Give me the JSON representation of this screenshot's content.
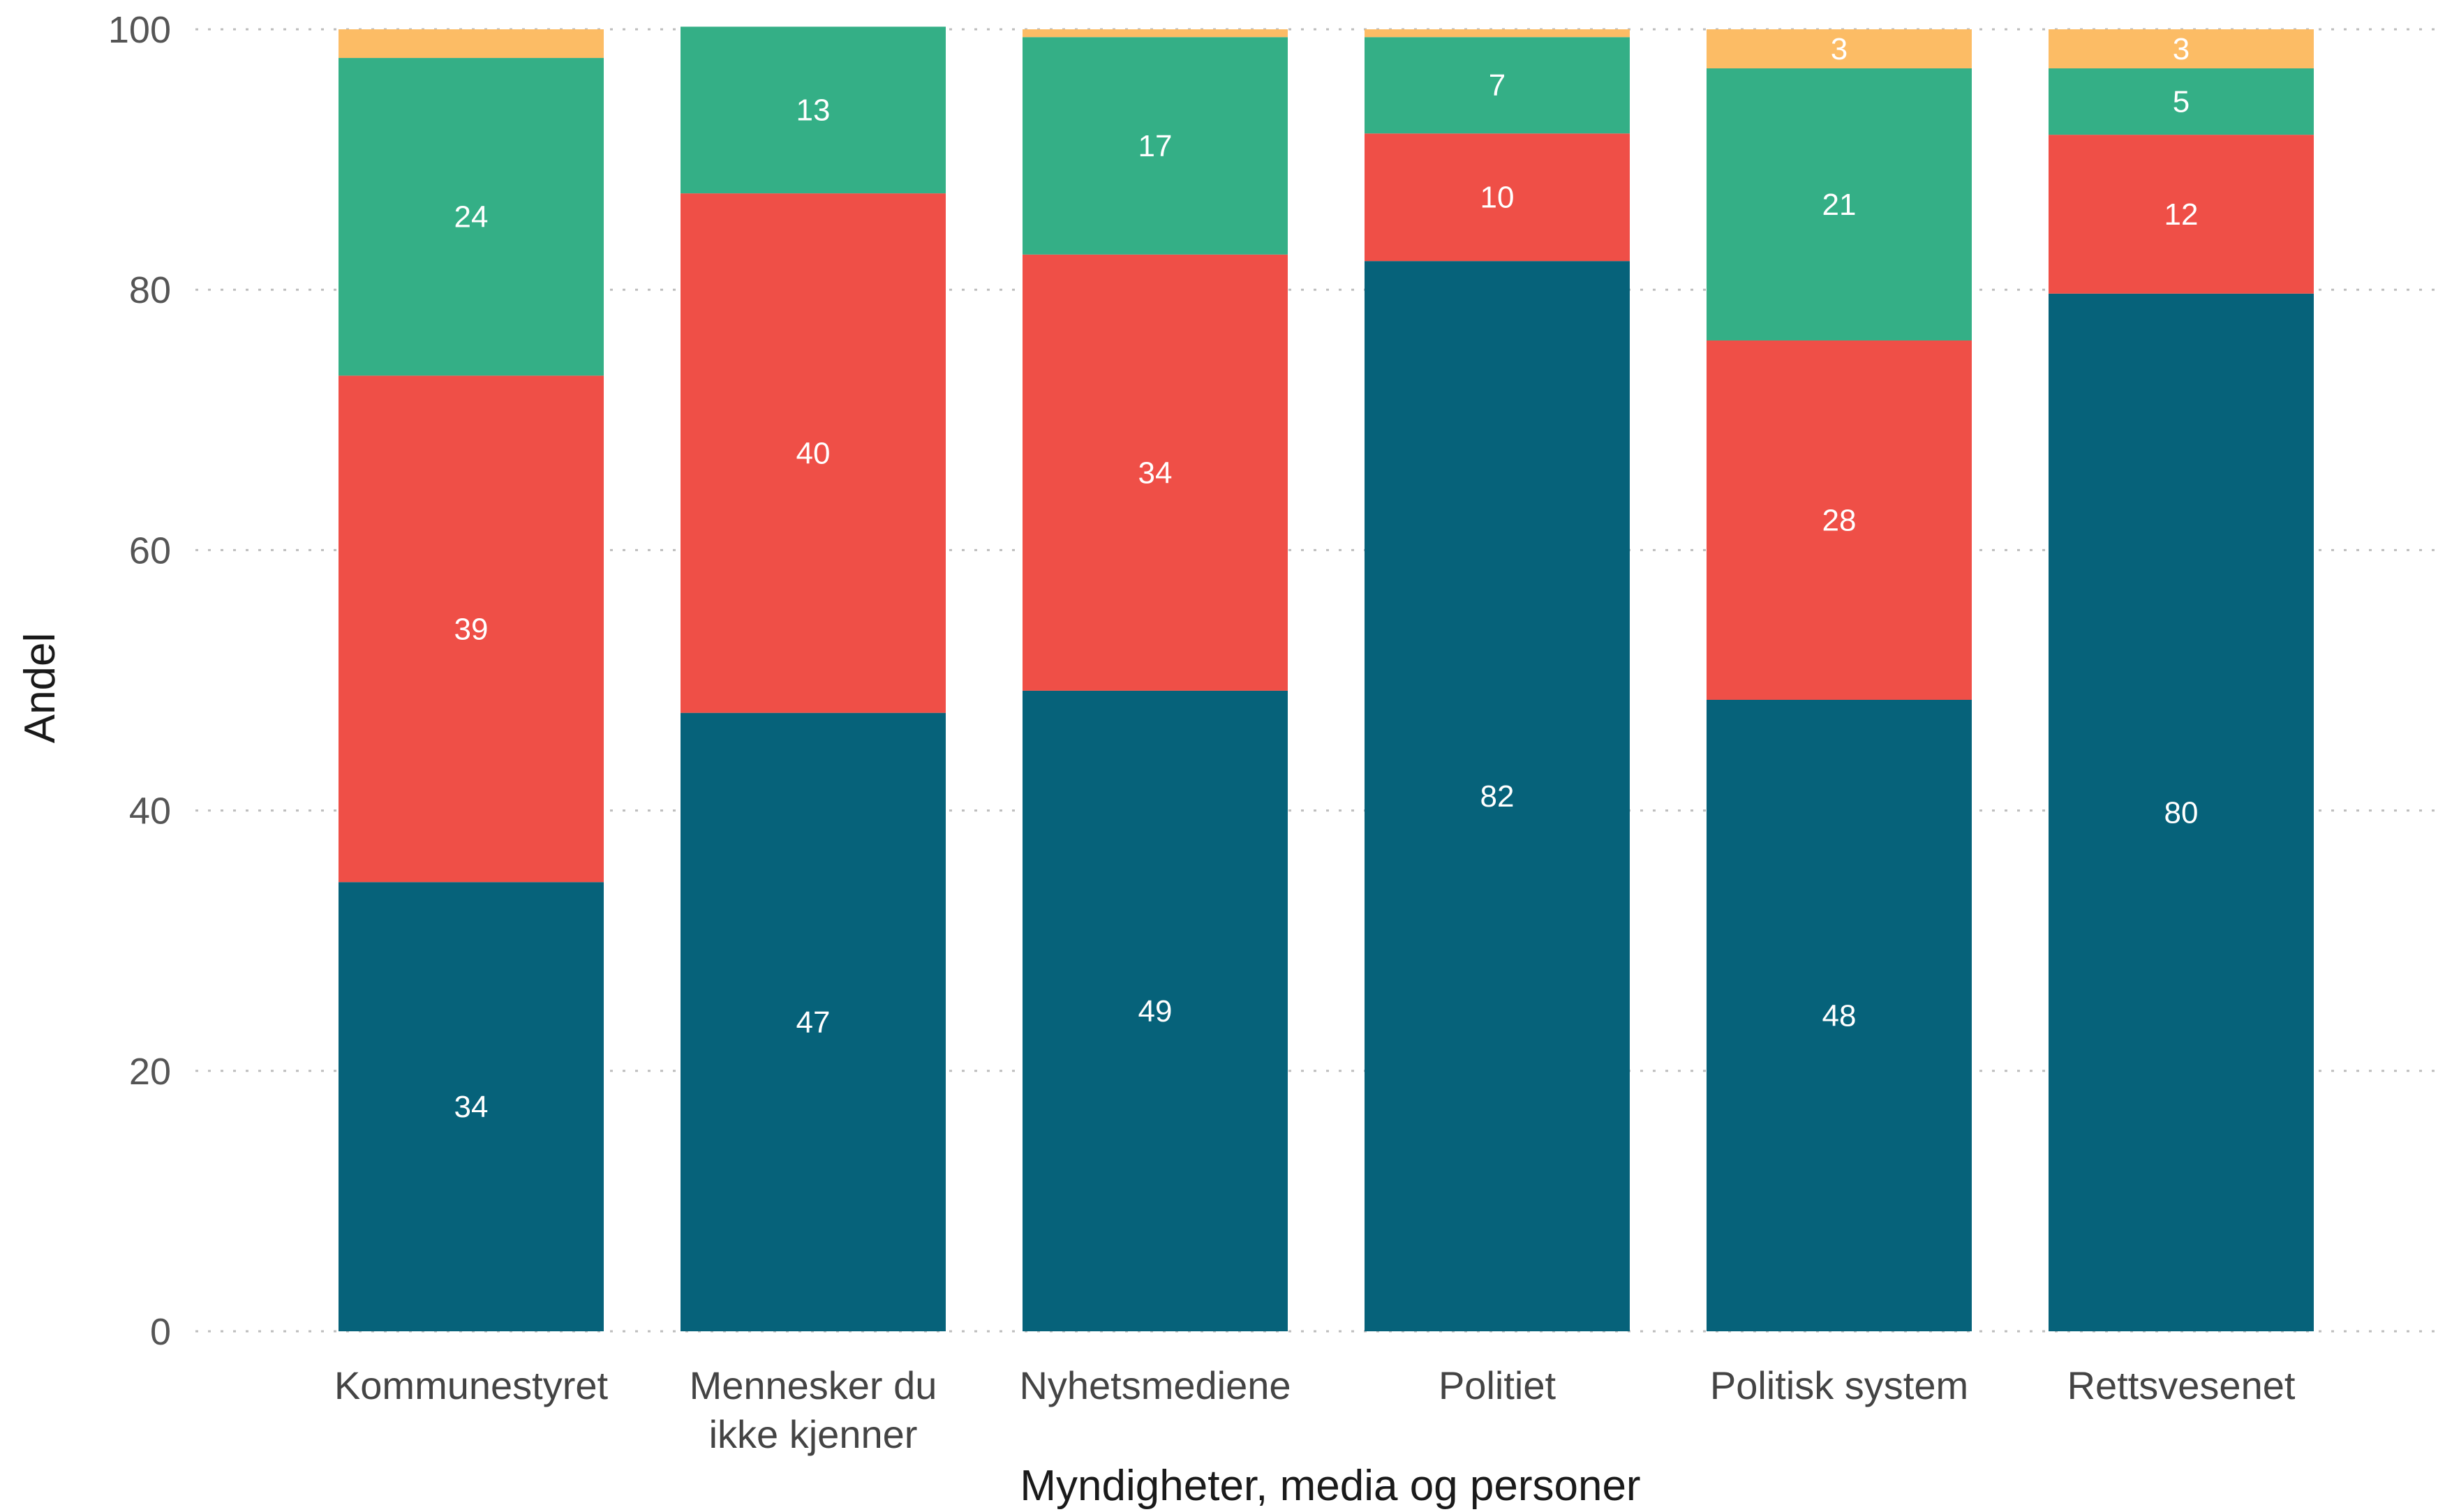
{
  "chart_data": {
    "type": "bar",
    "stacked": true,
    "xlabel": "Myndigheter, media og personer",
    "ylabel": "Andel",
    "ylim": [
      0,
      100
    ],
    "yticks": [
      0,
      20,
      40,
      60,
      80,
      100
    ],
    "grid": true,
    "legend": "none",
    "categories": [
      [
        "Kommunestyret"
      ],
      [
        "Mennesker du",
        "ikke kjenner"
      ],
      [
        "Nyhetsmediene"
      ],
      [
        "Politiet"
      ],
      [
        "Politisk system"
      ],
      [
        "Rettsvesenet"
      ]
    ],
    "series": [
      {
        "color": "#06627A",
        "values": [
          34.5,
          47.5,
          49.2,
          82.2,
          48.5,
          79.7
        ],
        "labels": [
          "34",
          "47",
          "49",
          "82",
          "48",
          "80"
        ]
      },
      {
        "color": "#EF4F47",
        "values": [
          38.9,
          39.9,
          33.5,
          9.8,
          27.6,
          12.2
        ],
        "labels": [
          "39",
          "40",
          "34",
          "10",
          "28",
          "12"
        ]
      },
      {
        "color": "#34AF86",
        "values": [
          24.4,
          12.8,
          16.7,
          7.4,
          20.9,
          5.1
        ],
        "labels": [
          "24",
          "13",
          "17",
          "7",
          "21",
          "5"
        ]
      },
      {
        "color": "#FCBC65",
        "values": [
          2.2,
          0.0,
          0.6,
          0.6,
          3.0,
          3.0
        ],
        "labels": [
          "",
          "",
          "",
          "",
          "3",
          "3"
        ]
      }
    ]
  }
}
